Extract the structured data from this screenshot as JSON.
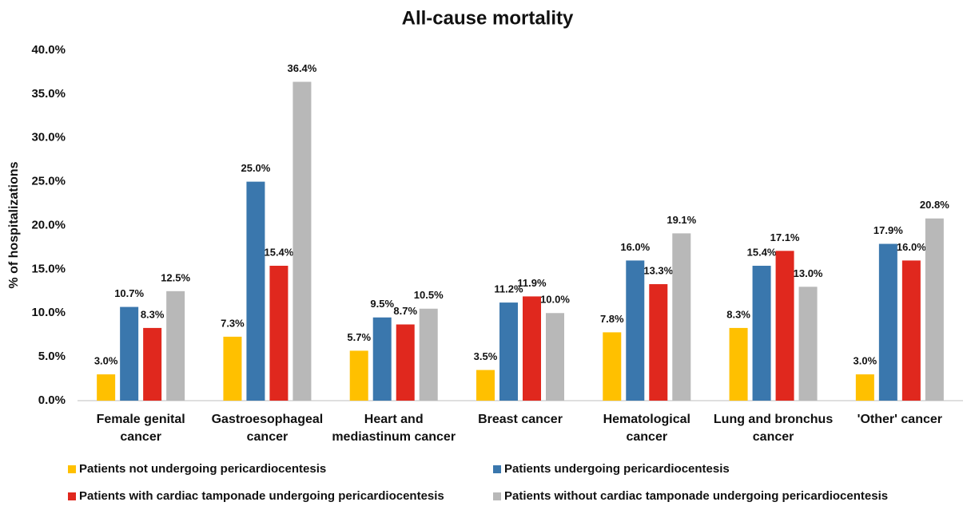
{
  "chart_data": {
    "type": "bar",
    "title": "All-cause mortality",
    "y_label": "% of hospitalizations",
    "categories": [
      "Female genital cancer",
      "Gastroesophageal cancer",
      "Heart and mediastinum cancer",
      "Breast cancer",
      "Hematological cancer",
      "Lung and bronchus cancer",
      "'Other' cancer"
    ],
    "series": [
      {
        "name": "Patients not undergoing pericardiocentesis",
        "color": "#ffc000",
        "values": [
          3.0,
          7.3,
          5.7,
          3.5,
          7.8,
          8.3,
          3.0
        ],
        "value_labels": [
          "3.0%",
          "7.3%",
          "5.7%",
          "3.5%",
          "7.8%",
          "8.3%",
          "3.0%"
        ]
      },
      {
        "name": "Patients undergoing pericardiocentesis",
        "color": "#3a77ad",
        "values": [
          10.7,
          25.0,
          9.5,
          11.2,
          16.0,
          15.4,
          17.9
        ],
        "value_labels": [
          "10.7%",
          "25.0%",
          "9.5%",
          "11.2%",
          "16.0%",
          "15.4%",
          "17.9%"
        ]
      },
      {
        "name": "Patients with cardiac tamponade undergoing pericardiocentesis",
        "color": "#e0281e",
        "values": [
          8.3,
          15.4,
          8.7,
          11.9,
          13.3,
          17.1,
          16.0
        ],
        "value_labels": [
          "8.3%",
          "15.4%",
          "8.7%",
          "11.9%",
          "13.3%",
          "17.1%",
          "16.0%"
        ]
      },
      {
        "name": "Patients without cardiac tamponade undergoing pericardiocentesis",
        "color": "#b8b8b8",
        "values": [
          12.5,
          36.4,
          10.5,
          10.0,
          19.1,
          13.0,
          20.8
        ],
        "value_labels": [
          "12.5%",
          "36.4%",
          "10.5%",
          "10.0%",
          "19.1%",
          "13.0%",
          "20.8%"
        ]
      }
    ],
    "ylim": [
      0,
      40
    ],
    "yticks": [
      {
        "value": 0,
        "label": "0.0%"
      },
      {
        "value": 5,
        "label": "5.0%"
      },
      {
        "value": 10,
        "label": "10.0%"
      },
      {
        "value": 15,
        "label": "15.0%"
      },
      {
        "value": 20,
        "label": "20.0%"
      },
      {
        "value": 25,
        "label": "25.0%"
      },
      {
        "value": 30,
        "label": "30.0%"
      },
      {
        "value": 35,
        "label": "35.0%"
      },
      {
        "value": 40,
        "label": "40.0%"
      }
    ],
    "grid": false,
    "legend": "bottom"
  }
}
